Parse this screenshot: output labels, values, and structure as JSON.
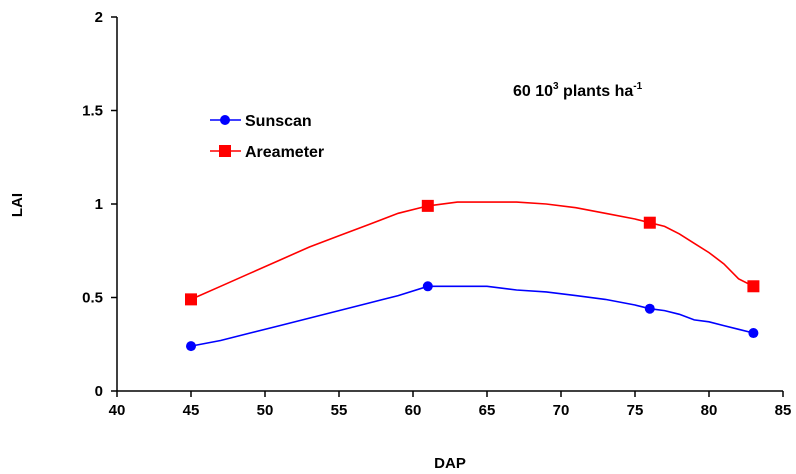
{
  "chart_data": {
    "type": "line",
    "xlabel": "DAP",
    "ylabel": "LAI",
    "xlim": [
      40,
      85
    ],
    "ylim": [
      0,
      2
    ],
    "x_ticks": [
      "40",
      "45",
      "50",
      "55",
      "60",
      "65",
      "70",
      "75",
      "80",
      "85"
    ],
    "y_ticks": [
      "0",
      "0.5",
      "1",
      "1.5",
      "2"
    ],
    "grid": false,
    "legend_position": "upper-left",
    "annotation": {
      "main": "60 10",
      "sup1": "3",
      "mid": " plants ha",
      "sup2": "-1"
    },
    "series": [
      {
        "name": "Sunscan",
        "color": "#0000ff",
        "marker": "circle",
        "points": [
          [
            45,
            0.24
          ],
          [
            61,
            0.56
          ],
          [
            76,
            0.44
          ],
          [
            83,
            0.31
          ]
        ],
        "curve": [
          [
            45,
            0.24
          ],
          [
            47,
            0.27
          ],
          [
            49,
            0.31
          ],
          [
            51,
            0.35
          ],
          [
            53,
            0.39
          ],
          [
            55,
            0.43
          ],
          [
            57,
            0.47
          ],
          [
            59,
            0.51
          ],
          [
            61,
            0.56
          ],
          [
            63,
            0.56
          ],
          [
            65,
            0.56
          ],
          [
            67,
            0.54
          ],
          [
            69,
            0.53
          ],
          [
            71,
            0.51
          ],
          [
            73,
            0.49
          ],
          [
            75,
            0.46
          ],
          [
            76,
            0.44
          ],
          [
            77,
            0.43
          ],
          [
            78,
            0.41
          ],
          [
            79,
            0.38
          ],
          [
            80,
            0.37
          ],
          [
            81,
            0.35
          ],
          [
            82,
            0.33
          ],
          [
            83,
            0.31
          ]
        ]
      },
      {
        "name": "Areameter",
        "color": "#ff0000",
        "marker": "square",
        "points": [
          [
            45,
            0.49
          ],
          [
            61,
            0.99
          ],
          [
            76,
            0.9
          ],
          [
            83,
            0.56
          ]
        ],
        "curve": [
          [
            45,
            0.49
          ],
          [
            47,
            0.56
          ],
          [
            49,
            0.63
          ],
          [
            51,
            0.7
          ],
          [
            53,
            0.77
          ],
          [
            55,
            0.83
          ],
          [
            57,
            0.89
          ],
          [
            59,
            0.95
          ],
          [
            61,
            0.99
          ],
          [
            63,
            1.01
          ],
          [
            65,
            1.01
          ],
          [
            67,
            1.01
          ],
          [
            69,
            1.0
          ],
          [
            71,
            0.98
          ],
          [
            73,
            0.95
          ],
          [
            75,
            0.92
          ],
          [
            76,
            0.9
          ],
          [
            77,
            0.88
          ],
          [
            78,
            0.84
          ],
          [
            79,
            0.79
          ],
          [
            80,
            0.74
          ],
          [
            81,
            0.68
          ],
          [
            82,
            0.6
          ],
          [
            83,
            0.56
          ]
        ]
      }
    ]
  }
}
